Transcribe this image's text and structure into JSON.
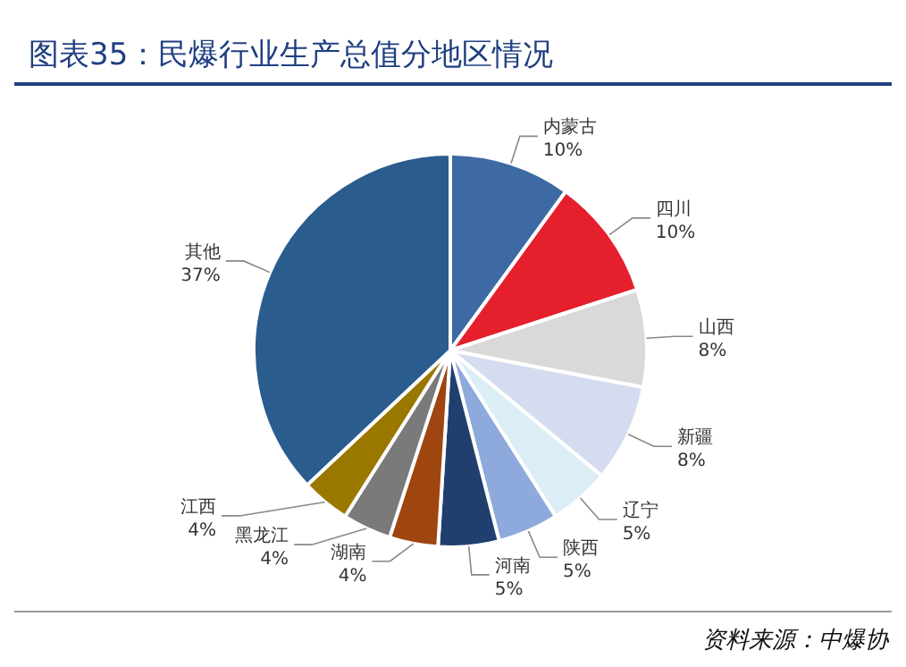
{
  "chart_data": {
    "type": "pie",
    "title": "图表35：民爆行业生产总值分地区情况",
    "categories": [
      "内蒙古",
      "四川",
      "山西",
      "新疆",
      "辽宁",
      "陕西",
      "河南",
      "湖南",
      "黑龙江",
      "江西",
      "其他"
    ],
    "values": [
      10,
      10,
      8,
      8,
      5,
      5,
      5,
      4,
      4,
      4,
      37
    ],
    "colors": [
      "#3d6aa3",
      "#e61f2d",
      "#d9d9d9",
      "#d5dcf0",
      "#dbeef5",
      "#8eaadc",
      "#203f6e",
      "#9f4510",
      "#7a7a7a",
      "#9a7800",
      "#2a5c8e"
    ],
    "value_labels": [
      "10%",
      "10%",
      "8%",
      "8%",
      "5%",
      "5%",
      "5%",
      "4%",
      "4%",
      "4%",
      "37%"
    ],
    "annotations": [
      "资料来源：中爆协"
    ]
  }
}
